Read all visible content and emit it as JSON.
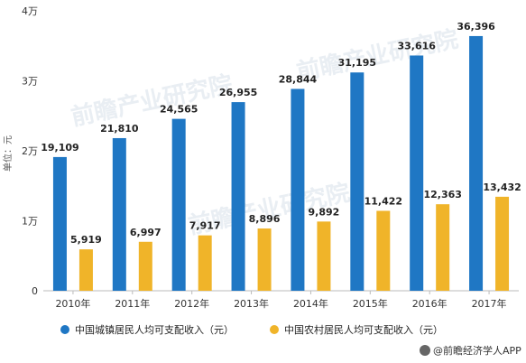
{
  "chart_data": {
    "type": "bar",
    "categories": [
      "2010年",
      "2011年",
      "2012年",
      "2013年",
      "2014年",
      "2015年",
      "2016年",
      "2017年"
    ],
    "series": [
      {
        "name": "中国城镇居民人均可支配收入（元）",
        "color": "#1f77c4",
        "values": [
          19109,
          21810,
          24565,
          26955,
          28844,
          31195,
          33616,
          36396
        ],
        "labels": [
          "19,109",
          "21,810",
          "24,565",
          "26,955",
          "28,844",
          "31,195",
          "33,616",
          "36,396"
        ]
      },
      {
        "name": "中国农村居民人均可支配收入（元）",
        "color": "#f0b429",
        "values": [
          5919,
          6997,
          7917,
          8896,
          9892,
          11422,
          12363,
          13432
        ],
        "labels": [
          "5,919",
          "6,997",
          "7,917",
          "8,896",
          "9,892",
          "11,422",
          "12,363",
          "13,432"
        ]
      }
    ],
    "ylabel": "单位：元",
    "ylim": [
      0,
      40000
    ],
    "yticks": [
      0,
      10000,
      20000,
      30000,
      40000
    ],
    "ytick_labels": [
      "0",
      "1万",
      "2万",
      "3万",
      "4万"
    ],
    "grid": false,
    "legend_position": "bottom"
  },
  "watermark": "前瞻产业研究院",
  "credit": "@前瞻经济学人APP"
}
